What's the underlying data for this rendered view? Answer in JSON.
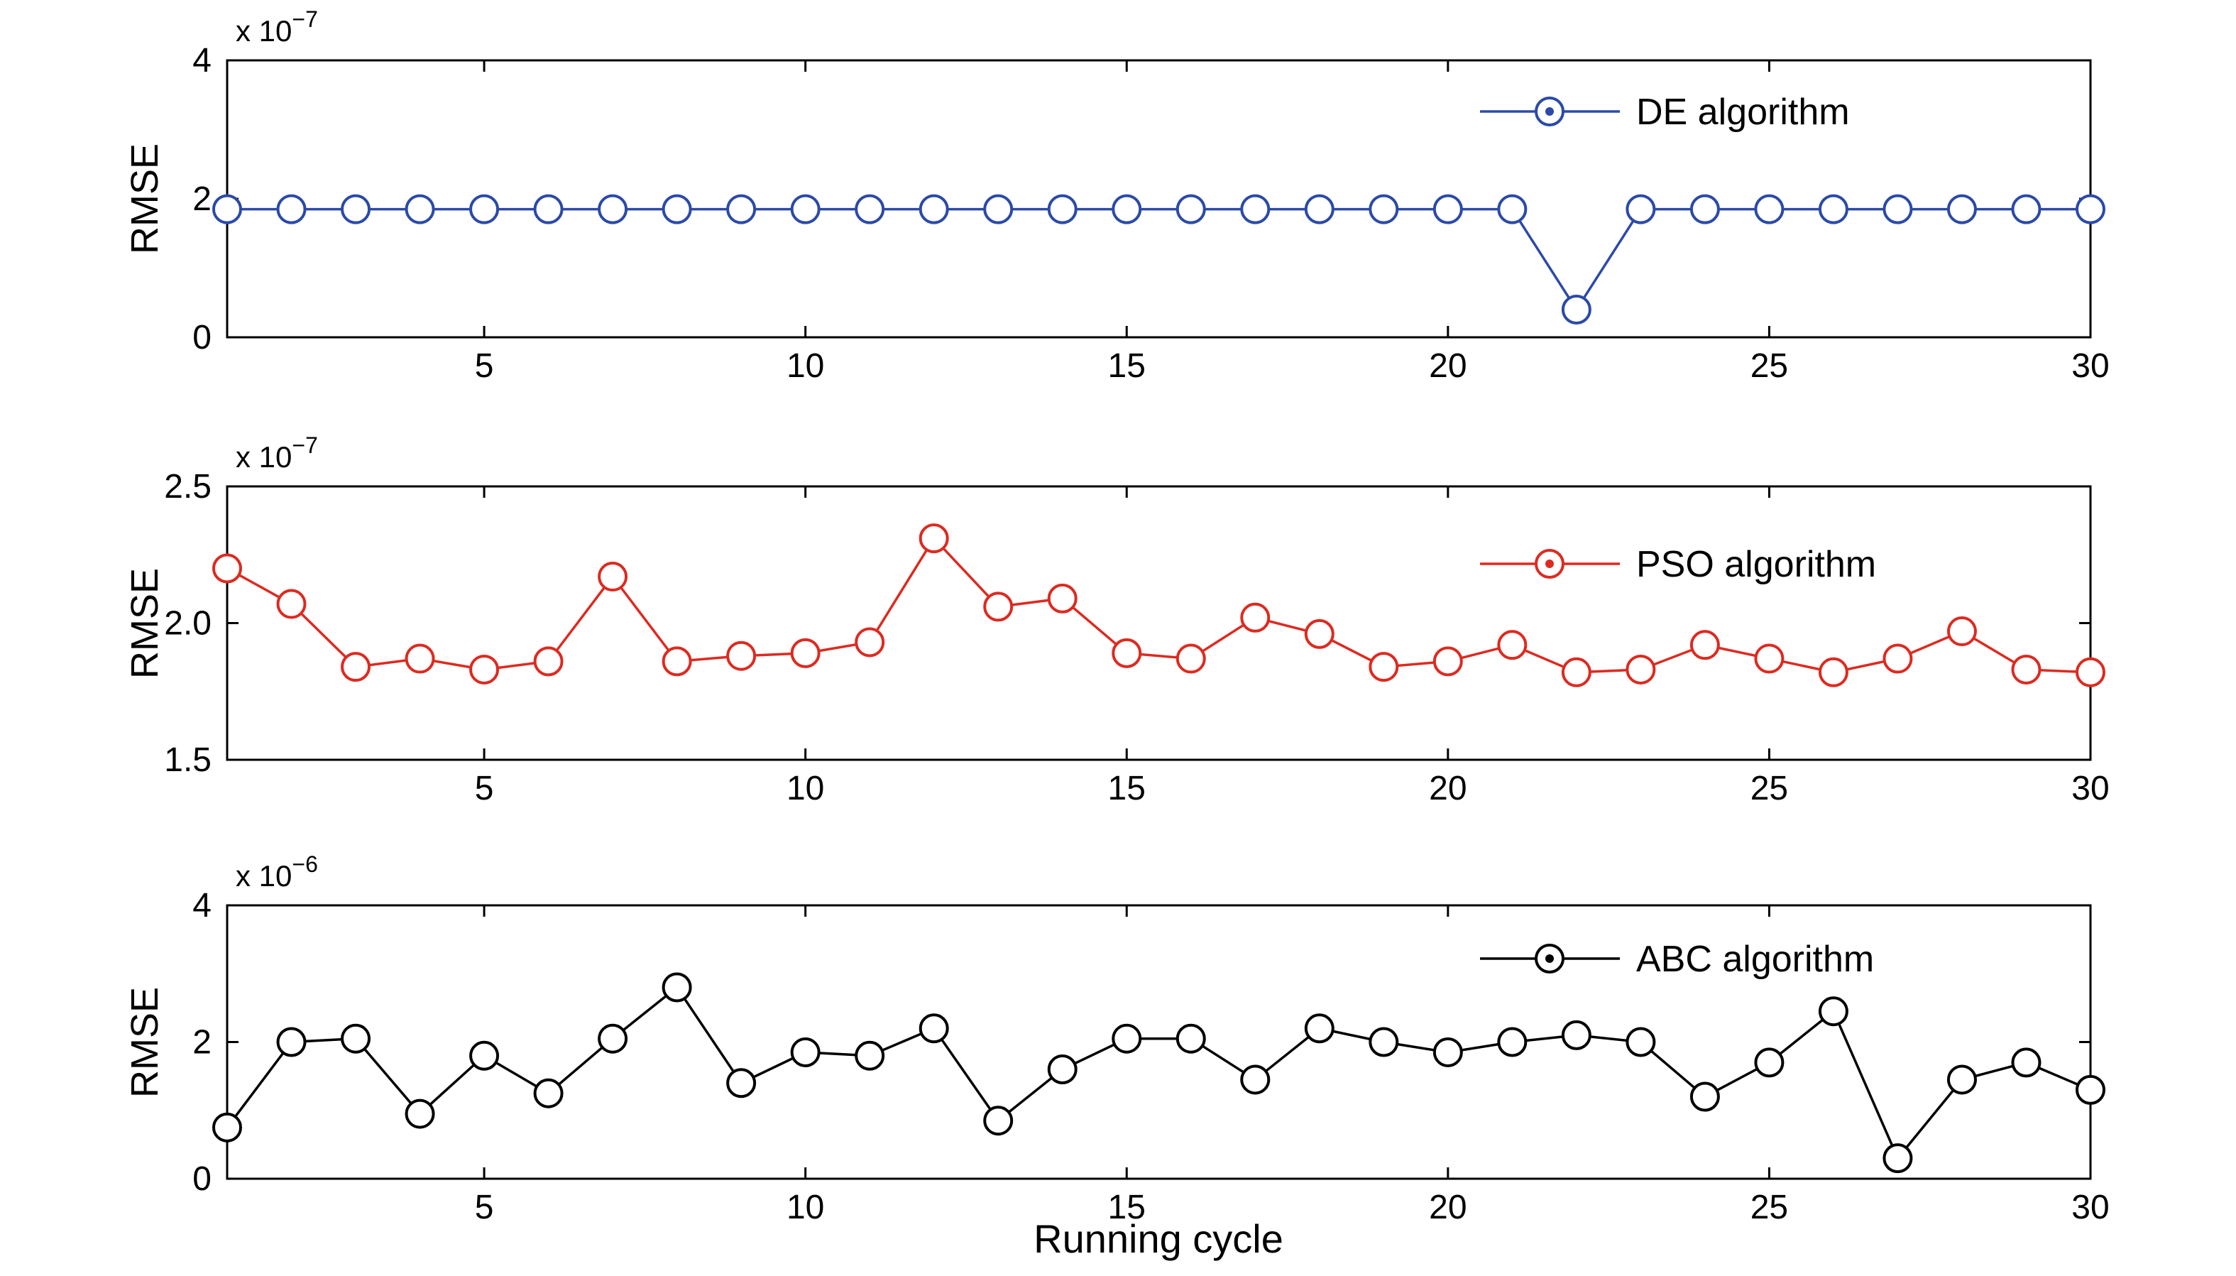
{
  "figure": {
    "background": "#ffffff",
    "xlabel": "Running cycle",
    "x_range": [
      1,
      30
    ],
    "x_ticks": [
      5,
      10,
      15,
      20,
      25,
      30
    ],
    "axis_color": "#000000"
  },
  "chart_data": [
    {
      "type": "line",
      "name": "DE",
      "legend": "DE algorithm",
      "ylabel": "RMSE",
      "exponent_prefix": "x 10",
      "exponent_power": "−7",
      "color": "#2b4aa8",
      "marker": "circle",
      "ylim": [
        0,
        4
      ],
      "y_ticks": [
        0,
        2,
        4
      ],
      "y_tick_labels": [
        "0",
        "2",
        "4"
      ],
      "x": [
        1,
        2,
        3,
        4,
        5,
        6,
        7,
        8,
        9,
        10,
        11,
        12,
        13,
        14,
        15,
        16,
        17,
        18,
        19,
        20,
        21,
        22,
        23,
        24,
        25,
        26,
        27,
        28,
        29,
        30
      ],
      "values": [
        1.85,
        1.85,
        1.85,
        1.85,
        1.85,
        1.85,
        1.85,
        1.85,
        1.85,
        1.85,
        1.85,
        1.85,
        1.85,
        1.85,
        1.85,
        1.85,
        1.85,
        1.85,
        1.85,
        1.85,
        1.85,
        0.4,
        1.85,
        1.85,
        1.85,
        1.85,
        1.85,
        1.85,
        1.85,
        1.85
      ]
    },
    {
      "type": "line",
      "name": "PSO",
      "legend": "PSO algorithm",
      "ylabel": "RMSE",
      "exponent_prefix": "x 10",
      "exponent_power": "−7",
      "color": "#dd2a20",
      "marker": "circle",
      "ylim": [
        1.5,
        2.5
      ],
      "y_ticks": [
        1.5,
        2.0,
        2.5
      ],
      "y_tick_labels": [
        "1.5",
        "2.0",
        "2.5"
      ],
      "x": [
        1,
        2,
        3,
        4,
        5,
        6,
        7,
        8,
        9,
        10,
        11,
        12,
        13,
        14,
        15,
        16,
        17,
        18,
        19,
        20,
        21,
        22,
        23,
        24,
        25,
        26,
        27,
        28,
        29,
        30
      ],
      "values": [
        2.2,
        2.07,
        1.84,
        1.87,
        1.83,
        1.86,
        2.17,
        1.86,
        1.88,
        1.89,
        1.93,
        2.31,
        2.06,
        2.09,
        1.89,
        1.87,
        2.02,
        1.96,
        1.84,
        1.86,
        1.92,
        1.82,
        1.83,
        1.92,
        1.87,
        1.82,
        1.87,
        1.97,
        1.83,
        1.82
      ]
    },
    {
      "type": "line",
      "name": "ABC",
      "legend": "ABC algorithm",
      "ylabel": "RMSE",
      "exponent_prefix": "x 10",
      "exponent_power": "−6",
      "color": "#000000",
      "marker": "circle",
      "ylim": [
        0,
        4
      ],
      "y_ticks": [
        0,
        2,
        4
      ],
      "y_tick_labels": [
        "0",
        "2",
        "4"
      ],
      "x": [
        1,
        2,
        3,
        4,
        5,
        6,
        7,
        8,
        9,
        10,
        11,
        12,
        13,
        14,
        15,
        16,
        17,
        18,
        19,
        20,
        21,
        22,
        23,
        24,
        25,
        26,
        27,
        28,
        29,
        30
      ],
      "values": [
        0.75,
        2.0,
        2.05,
        0.95,
        1.8,
        1.25,
        2.05,
        2.8,
        1.4,
        1.85,
        1.8,
        2.2,
        0.85,
        1.6,
        2.05,
        2.05,
        1.45,
        2.2,
        2.0,
        1.85,
        2.0,
        2.1,
        2.0,
        1.2,
        1.7,
        2.45,
        0.3,
        1.45,
        1.7,
        1.3
      ]
    }
  ]
}
